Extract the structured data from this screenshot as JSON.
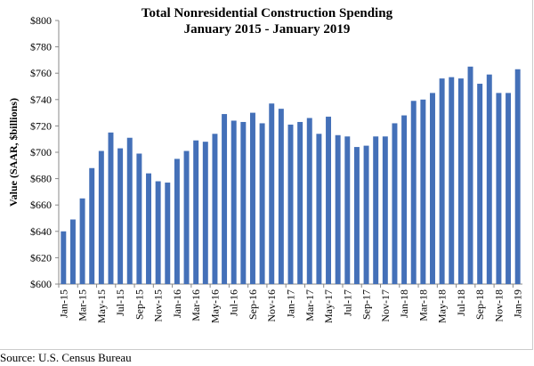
{
  "chart_data": {
    "type": "bar",
    "title": [
      "Total Nonresidential Construction Spending",
      "January 2015 - January 2019"
    ],
    "ylabel": "Value (SAAR, $billions)",
    "xlabel": "",
    "ylim": [
      600,
      800
    ],
    "yticks": [
      "$600",
      "$620",
      "$640",
      "$660",
      "$680",
      "$700",
      "$720",
      "$740",
      "$760",
      "$780",
      "$800"
    ],
    "grid": false,
    "bar_color": "#4470b8",
    "categories": [
      "Jan-15",
      "Feb-15",
      "Mar-15",
      "Apr-15",
      "May-15",
      "Jun-15",
      "Jul-15",
      "Aug-15",
      "Sep-15",
      "Oct-15",
      "Nov-15",
      "Dec-15",
      "Jan-16",
      "Feb-16",
      "Mar-16",
      "Apr-16",
      "May-16",
      "Jun-16",
      "Jul-16",
      "Aug-16",
      "Sep-16",
      "Oct-16",
      "Nov-16",
      "Dec-16",
      "Jan-17",
      "Feb-17",
      "Mar-17",
      "Apr-17",
      "May-17",
      "Jun-17",
      "Jul-17",
      "Aug-17",
      "Sep-17",
      "Oct-17",
      "Nov-17",
      "Dec-17",
      "Jan-18",
      "Feb-18",
      "Mar-18",
      "Apr-18",
      "May-18",
      "Jun-18",
      "Jul-18",
      "Aug-18",
      "Sep-18",
      "Oct-18",
      "Nov-18",
      "Dec-18",
      "Jan-19"
    ],
    "xtick_labels": [
      "Jan-15",
      "Mar-15",
      "May-15",
      "Jul-15",
      "Sep-15",
      "Nov-15",
      "Jan-16",
      "Mar-16",
      "May-16",
      "Jul-16",
      "Sep-16",
      "Nov-16",
      "Jan-17",
      "Mar-17",
      "May-17",
      "Jul-17",
      "Sep-17",
      "Nov-17",
      "Jan-18",
      "Mar-18",
      "May-18",
      "Jul-18",
      "Sep-18",
      "Nov-18",
      "Jan-19"
    ],
    "values": [
      640,
      649,
      665,
      688,
      701,
      715,
      703,
      711,
      699,
      684,
      678,
      677,
      695,
      701,
      709,
      708,
      714,
      729,
      724,
      723,
      730,
      722,
      737,
      733,
      721,
      723,
      726,
      714,
      727,
      713,
      712,
      704,
      705,
      712,
      712,
      722,
      728,
      739,
      740,
      745,
      756,
      757,
      756,
      765,
      752,
      759,
      745,
      745,
      763
    ]
  },
  "source": "Source:  U.S. Census Bureau"
}
